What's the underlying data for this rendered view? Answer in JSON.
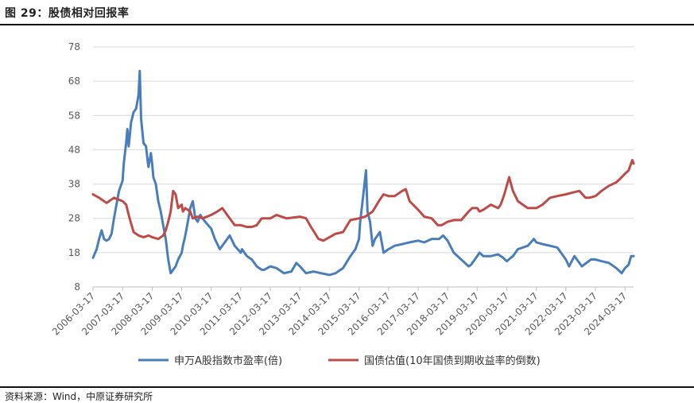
{
  "header": {
    "title": "图 29：股债相对回报率"
  },
  "footer": {
    "source": "资料来源：Wind，中原证券研究所"
  },
  "chart_data": {
    "type": "line",
    "title": "图 29：股债相对回报率",
    "x_tick_labels": [
      "2006-03-17",
      "2007-03-17",
      "2008-03-17",
      "2009-03-17",
      "2010-03-17",
      "2011-03-17",
      "2012-03-17",
      "2013-03-17",
      "2014-03-17",
      "2015-03-17",
      "2016-03-17",
      "2017-03-17",
      "2018-03-17",
      "2019-03-17",
      "2020-03-17",
      "2021-03-17",
      "2022-03-17",
      "2023-03-17",
      "2024-03-17"
    ],
    "y_ticks": [
      8,
      18,
      28,
      38,
      48,
      58,
      68,
      78
    ],
    "ylim": [
      8,
      78
    ],
    "xlim": [
      "2006-03-17",
      "2024-07-01"
    ],
    "grid": "horizontal",
    "legend_position": "bottom",
    "colors": {
      "pe": "#4a7ebb",
      "bond": "#be4b48",
      "grid": "#d9d9d9",
      "axis": "#bfbfbf"
    },
    "series": [
      {
        "name": "申万A股指数市盈率(倍)",
        "points": [
          [
            "2006-03-17",
            16.5
          ],
          [
            "2006-05-01",
            19
          ],
          [
            "2006-06-01",
            22
          ],
          [
            "2006-07-01",
            24.5
          ],
          [
            "2006-08-01",
            22
          ],
          [
            "2006-09-01",
            21.5
          ],
          [
            "2006-10-01",
            22
          ],
          [
            "2006-11-01",
            23.5
          ],
          [
            "2006-12-01",
            28
          ],
          [
            "2007-01-01",
            32
          ],
          [
            "2007-02-01",
            36
          ],
          [
            "2007-03-17",
            39
          ],
          [
            "2007-04-01",
            44
          ],
          [
            "2007-05-01",
            50
          ],
          [
            "2007-05-15",
            54
          ],
          [
            "2007-06-01",
            49
          ],
          [
            "2007-07-01",
            56
          ],
          [
            "2007-08-01",
            59
          ],
          [
            "2007-09-01",
            60
          ],
          [
            "2007-10-01",
            64
          ],
          [
            "2007-10-16",
            71
          ],
          [
            "2007-11-01",
            57
          ],
          [
            "2007-12-01",
            50
          ],
          [
            "2008-01-01",
            49
          ],
          [
            "2008-01-20",
            45
          ],
          [
            "2008-02-01",
            43
          ],
          [
            "2008-03-01",
            47
          ],
          [
            "2008-03-17",
            44
          ],
          [
            "2008-04-01",
            40
          ],
          [
            "2008-05-01",
            38
          ],
          [
            "2008-06-01",
            33
          ],
          [
            "2008-07-01",
            30
          ],
          [
            "2008-08-01",
            26
          ],
          [
            "2008-09-01",
            22
          ],
          [
            "2008-10-01",
            16
          ],
          [
            "2008-11-01",
            12
          ],
          [
            "2008-12-01",
            13
          ],
          [
            "2009-01-01",
            14
          ],
          [
            "2009-02-01",
            16
          ],
          [
            "2009-03-17",
            18
          ],
          [
            "2009-04-01",
            20
          ],
          [
            "2009-05-01",
            23
          ],
          [
            "2009-06-01",
            27
          ],
          [
            "2009-07-01",
            31
          ],
          [
            "2009-08-01",
            33
          ],
          [
            "2009-09-01",
            28
          ],
          [
            "2009-10-01",
            27
          ],
          [
            "2009-11-01",
            29
          ],
          [
            "2009-12-01",
            28
          ],
          [
            "2010-01-01",
            27
          ],
          [
            "2010-03-17",
            25
          ],
          [
            "2010-05-01",
            22
          ],
          [
            "2010-07-01",
            19
          ],
          [
            "2010-09-01",
            21
          ],
          [
            "2010-11-01",
            23
          ],
          [
            "2011-01-01",
            20
          ],
          [
            "2011-03-17",
            18
          ],
          [
            "2011-04-01",
            19
          ],
          [
            "2011-06-01",
            17
          ],
          [
            "2011-08-01",
            16
          ],
          [
            "2011-10-01",
            14
          ],
          [
            "2011-12-01",
            13
          ],
          [
            "2012-01-01",
            13
          ],
          [
            "2012-03-17",
            14
          ],
          [
            "2012-06-01",
            13.5
          ],
          [
            "2012-09-01",
            12
          ],
          [
            "2012-12-01",
            12.5
          ],
          [
            "2013-02-01",
            15
          ],
          [
            "2013-03-17",
            14
          ],
          [
            "2013-06-01",
            12
          ],
          [
            "2013-09-01",
            12.5
          ],
          [
            "2013-12-01",
            12
          ],
          [
            "2014-03-17",
            11.5
          ],
          [
            "2014-06-01",
            12
          ],
          [
            "2014-09-01",
            13.5
          ],
          [
            "2014-12-01",
            17
          ],
          [
            "2015-01-01",
            18
          ],
          [
            "2015-02-01",
            19
          ],
          [
            "2015-03-17",
            22
          ],
          [
            "2015-04-01",
            27
          ],
          [
            "2015-05-01",
            33
          ],
          [
            "2015-06-12",
            42
          ],
          [
            "2015-07-01",
            30
          ],
          [
            "2015-08-01",
            27
          ],
          [
            "2015-09-01",
            20
          ],
          [
            "2015-10-01",
            22
          ],
          [
            "2015-11-01",
            23
          ],
          [
            "2015-12-01",
            24
          ],
          [
            "2016-01-15",
            18
          ],
          [
            "2016-03-17",
            19
          ],
          [
            "2016-06-01",
            20
          ],
          [
            "2016-09-01",
            20.5
          ],
          [
            "2016-12-01",
            21
          ],
          [
            "2017-03-17",
            21.5
          ],
          [
            "2017-06-01",
            21
          ],
          [
            "2017-09-01",
            22
          ],
          [
            "2017-12-01",
            22
          ],
          [
            "2018-01-20",
            23
          ],
          [
            "2018-03-17",
            21.5
          ],
          [
            "2018-06-01",
            18
          ],
          [
            "2018-09-01",
            16
          ],
          [
            "2018-12-01",
            14
          ],
          [
            "2019-01-01",
            14.5
          ],
          [
            "2019-03-17",
            17
          ],
          [
            "2019-04-15",
            18
          ],
          [
            "2019-06-01",
            17
          ],
          [
            "2019-09-01",
            17
          ],
          [
            "2019-12-01",
            17.5
          ],
          [
            "2020-02-01",
            16.5
          ],
          [
            "2020-03-17",
            15.5
          ],
          [
            "2020-06-01",
            17
          ],
          [
            "2020-08-01",
            19
          ],
          [
            "2020-12-01",
            20
          ],
          [
            "2021-02-15",
            22
          ],
          [
            "2021-03-17",
            21
          ],
          [
            "2021-06-01",
            20.5
          ],
          [
            "2021-09-01",
            20
          ],
          [
            "2021-12-01",
            19.5
          ],
          [
            "2022-03-17",
            16
          ],
          [
            "2022-04-26",
            14
          ],
          [
            "2022-07-01",
            17
          ],
          [
            "2022-10-01",
            14
          ],
          [
            "2023-01-20",
            16
          ],
          [
            "2023-03-17",
            16
          ],
          [
            "2023-06-01",
            15.5
          ],
          [
            "2023-09-01",
            15
          ],
          [
            "2023-12-01",
            13.5
          ],
          [
            "2024-02-05",
            12
          ],
          [
            "2024-03-17",
            13.5
          ],
          [
            "2024-05-01",
            14.5
          ],
          [
            "2024-06-01",
            17
          ],
          [
            "2024-07-01",
            17
          ]
        ]
      },
      {
        "name": "国债估值(10年国债到期收益率的倒数)",
        "points": [
          [
            "2006-03-17",
            35
          ],
          [
            "2006-06-01",
            34
          ],
          [
            "2006-09-01",
            32.5
          ],
          [
            "2006-12-01",
            34
          ],
          [
            "2007-03-17",
            33
          ],
          [
            "2007-05-01",
            32
          ],
          [
            "2007-06-01",
            29
          ],
          [
            "2007-07-01",
            26.5
          ],
          [
            "2007-08-01",
            24
          ],
          [
            "2007-09-01",
            23.5
          ],
          [
            "2007-10-01",
            23
          ],
          [
            "2007-12-01",
            22.5
          ],
          [
            "2008-02-01",
            23
          ],
          [
            "2008-03-17",
            22.5
          ],
          [
            "2008-06-01",
            22
          ],
          [
            "2008-08-01",
            23
          ],
          [
            "2008-09-01",
            24.5
          ],
          [
            "2008-10-01",
            27
          ],
          [
            "2008-11-01",
            30
          ],
          [
            "2008-12-01",
            36
          ],
          [
            "2009-01-01",
            35
          ],
          [
            "2009-02-01",
            31
          ],
          [
            "2009-03-17",
            32
          ],
          [
            "2009-04-01",
            30
          ],
          [
            "2009-05-01",
            31
          ],
          [
            "2009-07-01",
            30
          ],
          [
            "2009-08-01",
            28
          ],
          [
            "2009-10-01",
            28.5
          ],
          [
            "2009-12-01",
            28
          ],
          [
            "2010-03-17",
            29
          ],
          [
            "2010-06-01",
            30
          ],
          [
            "2010-08-01",
            31
          ],
          [
            "2010-09-01",
            30
          ],
          [
            "2010-11-01",
            28
          ],
          [
            "2011-01-01",
            26
          ],
          [
            "2011-03-17",
            26
          ],
          [
            "2011-06-01",
            25.5
          ],
          [
            "2011-08-01",
            25.5
          ],
          [
            "2011-10-01",
            26
          ],
          [
            "2011-12-01",
            28
          ],
          [
            "2012-03-17",
            28
          ],
          [
            "2012-06-01",
            29
          ],
          [
            "2012-08-01",
            28.5
          ],
          [
            "2012-10-01",
            28
          ],
          [
            "2013-03-17",
            28.5
          ],
          [
            "2013-06-01",
            28
          ],
          [
            "2013-08-01",
            25.5
          ],
          [
            "2013-11-01",
            22
          ],
          [
            "2014-01-01",
            21.5
          ],
          [
            "2014-03-17",
            22.5
          ],
          [
            "2014-06-01",
            23.5
          ],
          [
            "2014-09-01",
            24
          ],
          [
            "2014-12-01",
            27.5
          ],
          [
            "2015-03-17",
            28
          ],
          [
            "2015-06-01",
            28.5
          ],
          [
            "2015-09-01",
            30
          ],
          [
            "2015-12-01",
            33.5
          ],
          [
            "2016-01-15",
            35
          ],
          [
            "2016-03-17",
            34.5
          ],
          [
            "2016-06-01",
            34.5
          ],
          [
            "2016-09-01",
            36
          ],
          [
            "2016-10-15",
            36.5
          ],
          [
            "2016-12-01",
            33
          ],
          [
            "2017-03-17",
            30.5
          ],
          [
            "2017-06-01",
            28.5
          ],
          [
            "2017-09-01",
            28
          ],
          [
            "2017-11-15",
            26
          ],
          [
            "2018-01-01",
            26
          ],
          [
            "2018-03-17",
            27
          ],
          [
            "2018-06-01",
            27.5
          ],
          [
            "2018-09-01",
            27.5
          ],
          [
            "2018-12-01",
            30
          ],
          [
            "2019-01-15",
            31
          ],
          [
            "2019-03-17",
            31
          ],
          [
            "2019-04-15",
            30
          ],
          [
            "2019-06-01",
            30.5
          ],
          [
            "2019-09-01",
            32
          ],
          [
            "2019-12-01",
            31
          ],
          [
            "2020-01-01",
            32
          ],
          [
            "2020-02-15",
            35
          ],
          [
            "2020-04-15",
            40
          ],
          [
            "2020-06-01",
            36
          ],
          [
            "2020-08-01",
            33
          ],
          [
            "2020-10-01",
            32
          ],
          [
            "2020-12-01",
            31
          ],
          [
            "2021-03-17",
            31
          ],
          [
            "2021-06-01",
            32
          ],
          [
            "2021-09-01",
            34
          ],
          [
            "2021-12-01",
            34.5
          ],
          [
            "2022-03-17",
            35
          ],
          [
            "2022-06-01",
            35.5
          ],
          [
            "2022-09-01",
            36
          ],
          [
            "2022-11-15",
            34
          ],
          [
            "2023-01-01",
            34
          ],
          [
            "2023-03-17",
            34.5
          ],
          [
            "2023-06-01",
            36
          ],
          [
            "2023-09-01",
            37.5
          ],
          [
            "2023-12-01",
            38.5
          ],
          [
            "2024-01-15",
            39.5
          ],
          [
            "2024-03-17",
            41
          ],
          [
            "2024-05-01",
            42
          ],
          [
            "2024-06-15",
            45
          ],
          [
            "2024-07-01",
            44
          ]
        ]
      }
    ]
  }
}
